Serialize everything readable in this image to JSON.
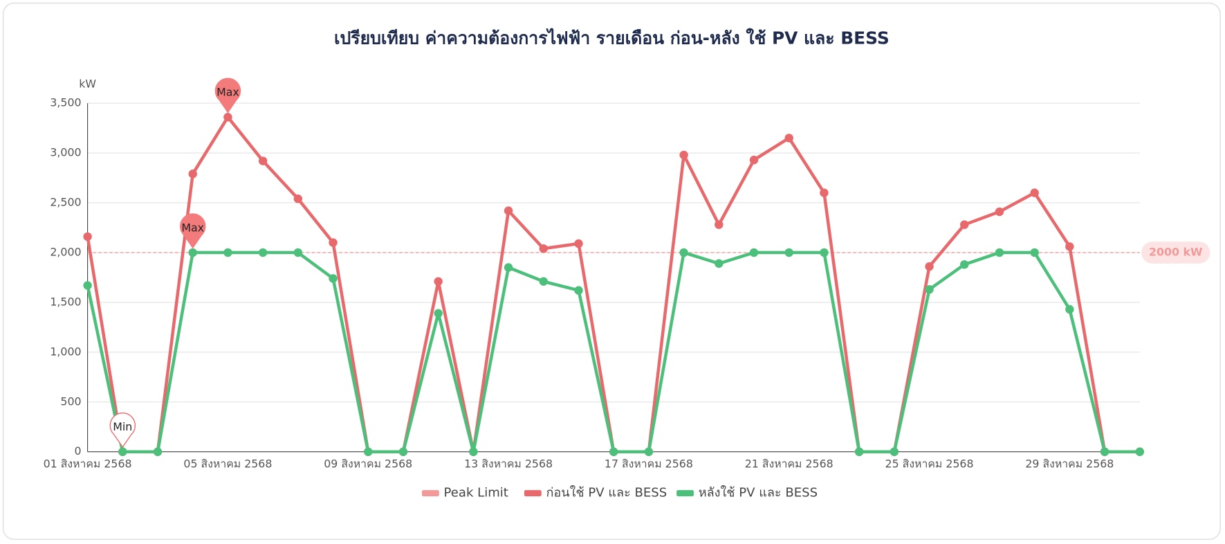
{
  "chart_data": {
    "type": "line",
    "title": "เปรียบเทียบ ค่าความต้องการไฟฟ้า รายเดือน ก่อน-หลัง ใช้ PV และ BESS",
    "y_axis_label": "kW",
    "categories": [
      "01 สิงหาคม 2568",
      null,
      null,
      null,
      "05 สิงหาคม 2568",
      null,
      null,
      null,
      "09 สิงหาคม 2568",
      null,
      null,
      null,
      "13 สิงหาคม 2568",
      null,
      null,
      null,
      "17 สิงหาคม 2568",
      null,
      null,
      null,
      "21 สิงหาคม 2568",
      null,
      null,
      null,
      "25 สิงหาคม 2568",
      null,
      null,
      null,
      "29 สิงหาคม 2568",
      null,
      null
    ],
    "series": [
      {
        "name": "ก่อนใช้ PV และ BESS",
        "color": "#e8696b",
        "max_label": "Max",
        "min_label": "Min",
        "values": [
          2160,
          0,
          0,
          2790,
          3360,
          2920,
          2540,
          2100,
          0,
          0,
          1710,
          0,
          2420,
          2040,
          2090,
          0,
          0,
          2980,
          2280,
          2930,
          3150,
          2600,
          0,
          0,
          1860,
          2280,
          2410,
          2600,
          2060,
          0,
          0
        ]
      },
      {
        "name": "หลังใช้ PV และ BESS",
        "color": "#4cbf7b",
        "max_label": "Max",
        "values": [
          1670,
          0,
          0,
          2000,
          2000,
          2000,
          2000,
          1740,
          0,
          0,
          1390,
          0,
          1850,
          1710,
          1620,
          0,
          0,
          2000,
          1890,
          2000,
          2000,
          2000,
          0,
          0,
          1630,
          1880,
          2000,
          2000,
          1430,
          0,
          0
        ]
      }
    ],
    "peak_limit": {
      "name": "Peak Limit",
      "value": 2000,
      "label": "2000 kW",
      "color": "#f29a9a"
    },
    "ylim": [
      0,
      3500
    ],
    "yticks": [
      0,
      {
        "value": 500,
        "label": "500"
      },
      {
        "value": 1000,
        "label": "1,000"
      },
      {
        "value": 1500,
        "label": "1,500"
      },
      {
        "value": 2000,
        "label": "2,000"
      },
      {
        "value": 2500,
        "label": "2,500"
      },
      {
        "value": 3000,
        "label": "3,000"
      },
      {
        "value": 3500,
        "label": "3,500"
      }
    ],
    "grid": true
  }
}
